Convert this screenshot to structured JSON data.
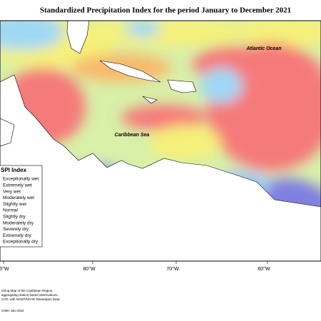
{
  "title": "Standardized Precipitation Index for the period January to December 2021",
  "map_labels": [
    "Atlantic Ocean",
    "Caribbean Sea"
  ],
  "legend": {
    "title": "SPI Index",
    "items": [
      "Exceptionally wet",
      "Extremely wet",
      "Very wet",
      "Moderately wet",
      "Slightly wet",
      "Normal",
      "Slightly dry",
      "Moderately dry",
      "Severely dry",
      "Extremely dry",
      "Exceptionally dry"
    ]
  },
  "longitudes": [
    "0°W",
    "80°W",
    "70°W",
    "60°W"
  ],
  "footer": [
    "toring Map of the Caribbean Region.",
    "aggregating station based observations,",
    "COF, with NCEP/NCAR Reanalysis Data.",
    "CIMH Jan-2022"
  ]
}
